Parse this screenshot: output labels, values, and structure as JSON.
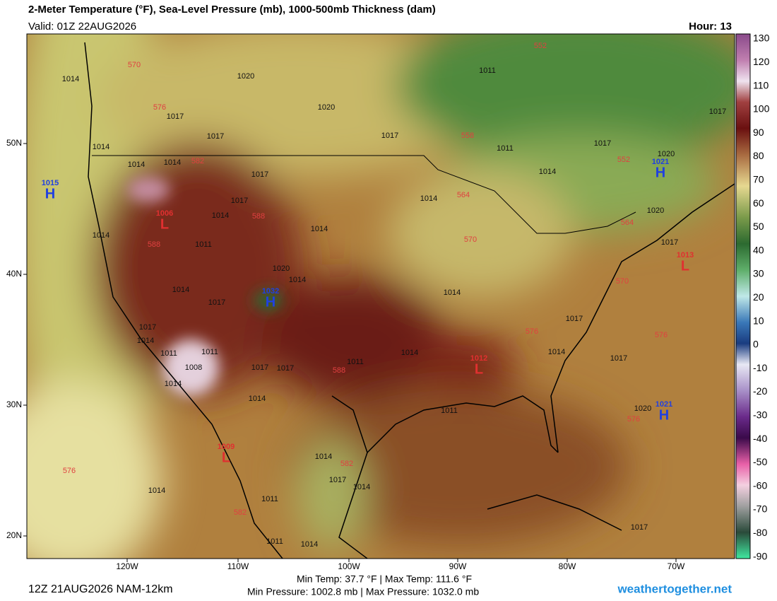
{
  "header": {
    "title": "2-Meter Temperature (°F), Sea-Level Pressure (mb), 1000-500mb Thickness (dam)",
    "valid": "Valid: 01Z 22AUG2026",
    "hour": "Hour: 13"
  },
  "colorbar": {
    "labels": [
      "130",
      "120",
      "110",
      "100",
      "90",
      "80",
      "70",
      "60",
      "50",
      "40",
      "30",
      "20",
      "10",
      "0",
      "-10",
      "-20",
      "-30",
      "-40",
      "-50",
      "-60",
      "-70",
      "-80",
      "-90"
    ]
  },
  "axes": {
    "lat_labels": [
      "50N",
      "40N",
      "30N",
      "20N"
    ],
    "lon_labels": [
      "120W",
      "110W",
      "100W",
      "90W",
      "80W",
      "70W"
    ]
  },
  "map": {
    "highs": [
      {
        "letter": "H",
        "pressure": "1015"
      },
      {
        "letter": "H",
        "pressure": "1032"
      },
      {
        "letter": "H",
        "pressure": "1021"
      },
      {
        "letter": "H",
        "pressure": "1021"
      }
    ],
    "lows": [
      {
        "letter": "L",
        "pressure": "1006"
      },
      {
        "letter": "L",
        "pressure": "1013"
      },
      {
        "letter": "L",
        "pressure": "1012"
      },
      {
        "letter": "L",
        "pressure": "1009"
      }
    ],
    "isobar_labels": [
      "1014",
      "1020",
      "1011",
      "1020",
      "1017",
      "1017",
      "1017",
      "1014",
      "1011",
      "1017",
      "1020",
      "1014",
      "1014",
      "1014",
      "1017",
      "1017",
      "1014",
      "1014",
      "1020",
      "1014",
      "1014",
      "1011",
      "1017",
      "1020",
      "1014",
      "1014",
      "1014",
      "1017",
      "1017",
      "1017",
      "1014",
      "1011",
      "1011",
      "1008",
      "1014",
      "1011",
      "1014",
      "1017",
      "1017",
      "1017",
      "1014",
      "1014",
      "1011",
      "1020",
      "1014",
      "1017",
      "1014",
      "1014",
      "1011",
      "1011",
      "1014",
      "1017",
      "1017"
    ],
    "thickness_labels": [
      "570",
      "576",
      "552",
      "558",
      "582",
      "552",
      "564",
      "564",
      "570",
      "588",
      "588",
      "570",
      "576",
      "576",
      "588",
      "582",
      "576",
      "582",
      "576"
    ]
  },
  "footer": {
    "run": "12Z 21AUG2026 NAM-12km",
    "temps": "Min Temp:  37.7 °F | Max Temp: 111.6 °F",
    "pressures": "Min Pressure: 1002.8 mb | Max Pressure: 1032.0 mb",
    "site": "weathertogether.net"
  }
}
